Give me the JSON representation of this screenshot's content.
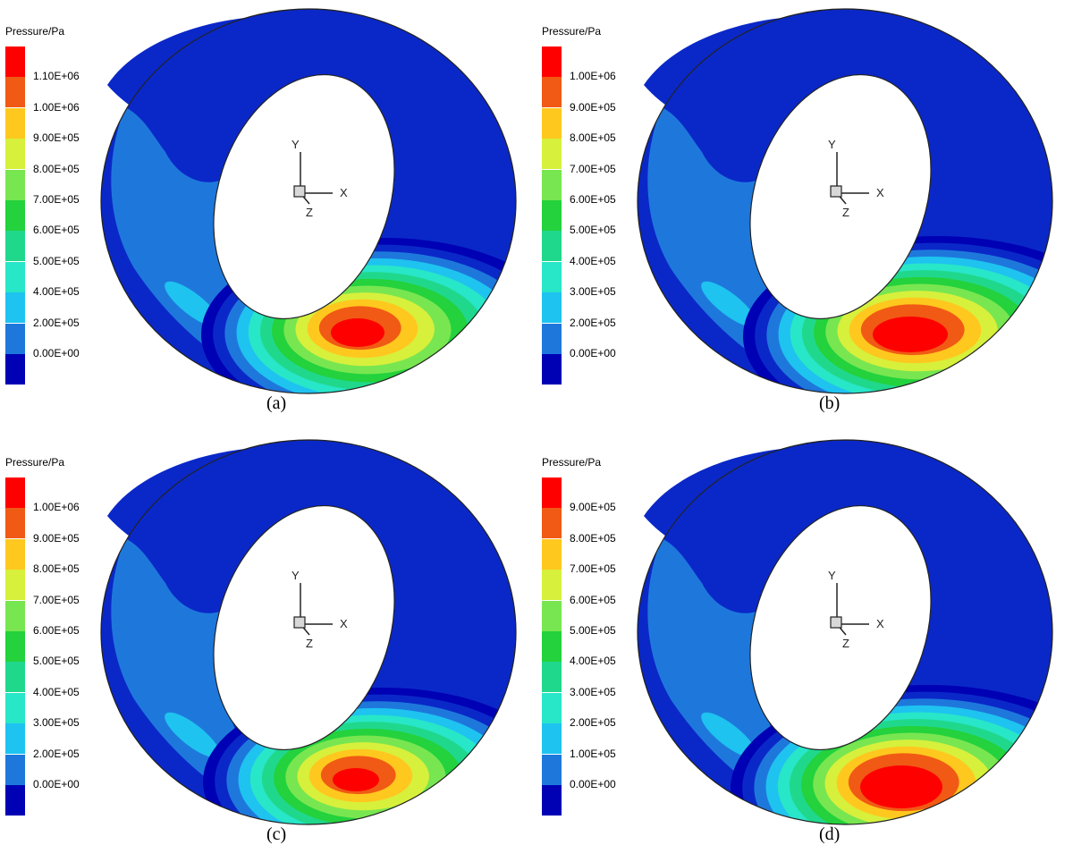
{
  "panels": [
    {
      "caption": "(a)",
      "legend_title": "Pressure/Pa",
      "ticks": [
        "1.10E+06",
        "1.00E+06",
        "9.00E+05",
        "8.00E+05",
        "7.00E+05",
        "6.00E+05",
        "5.00E+05",
        "4.00E+05",
        "2.00E+05",
        "0.00E+00"
      ]
    },
    {
      "caption": "(b)",
      "legend_title": "Pressure/Pa",
      "ticks": [
        "1.00E+06",
        "9.00E+05",
        "8.00E+05",
        "7.00E+05",
        "6.00E+05",
        "5.00E+05",
        "4.00E+05",
        "3.00E+05",
        "2.00E+05",
        "0.00E+00"
      ]
    },
    {
      "caption": "(c)",
      "legend_title": "Pressure/Pa",
      "ticks": [
        "1.00E+06",
        "9.00E+05",
        "8.00E+05",
        "7.00E+05",
        "6.00E+05",
        "5.00E+05",
        "4.00E+05",
        "3.00E+05",
        "2.00E+05",
        "0.00E+00"
      ]
    },
    {
      "caption": "(d)",
      "legend_title": "Pressure/Pa",
      "ticks": [
        "9.00E+05",
        "8.00E+05",
        "7.00E+05",
        "6.00E+05",
        "5.00E+05",
        "4.00E+05",
        "3.00E+05",
        "2.00E+05",
        "1.00E+05",
        "0.00E+00"
      ]
    }
  ],
  "axis_labels": {
    "x": "X",
    "y": "Y",
    "z": "Z"
  },
  "colormap": [
    "#ff0000",
    "#f05a14",
    "#ffc81e",
    "#d7f03c",
    "#78e650",
    "#23d23c",
    "#20d88c",
    "#28e6c8",
    "#1ec3f0",
    "#1e78dc",
    "#0a28c8",
    "#0000b4"
  ]
}
